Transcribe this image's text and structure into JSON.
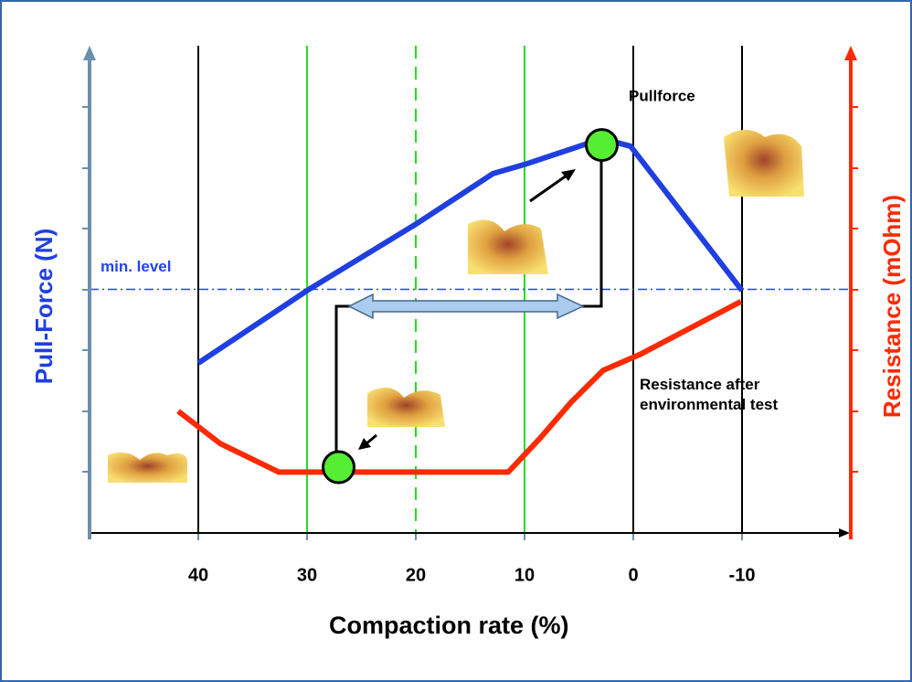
{
  "chart_data": {
    "type": "line",
    "xlabel": "Compaction rate (%)",
    "ylabel": "Pull-Force (N)",
    "y2label": "Resistance (mOhm)",
    "xlim": [
      50,
      -20
    ],
    "xticks": [
      40,
      30,
      20,
      10,
      0,
      -10
    ],
    "xgrid_colors": [
      "#000000",
      "#22dd22",
      "#22dd22",
      "#22dd22",
      "#000000",
      "#000000"
    ],
    "xgrid_dashed": [
      false,
      false,
      true,
      false,
      false,
      false
    ],
    "ylim": [
      0,
      8
    ],
    "y2lim": [
      0,
      8
    ],
    "series": [
      {
        "name": "Pullforce",
        "color": "#1f3fe0",
        "x": [
          40,
          30,
          20,
          12.9,
          10,
          4.45,
          2.77,
          0.25,
          -10
        ],
        "values": [
          2.79,
          3.98,
          5.07,
          5.9,
          6.05,
          6.38,
          6.47,
          6.35,
          3.98
        ]
      },
      {
        "name": "Resistance after environmental test",
        "color": "#ff2a00",
        "axis": "y2",
        "x": [
          41.85,
          38,
          32.6,
          11.5,
          8.6,
          5.7,
          2.77,
          -0.6,
          -9.9
        ],
        "values": [
          2.0,
          1.47,
          1.0,
          1.0,
          1.55,
          2.15,
          2.67,
          2.93,
          3.8
        ]
      }
    ],
    "min_level": {
      "label": "min. level",
      "value": 4.0,
      "color": "#2244ee"
    },
    "markers": {
      "x": [
        27.1,
        2.9
      ],
      "values": [
        1.08,
        6.37
      ],
      "color": "#55ee33"
    }
  }
}
